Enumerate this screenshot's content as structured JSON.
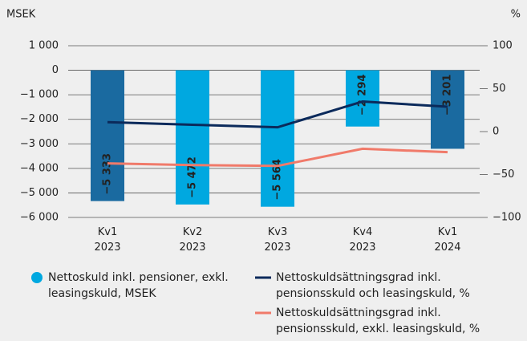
{
  "chart_data": {
    "type": "bar-line",
    "y_label": "MSEK",
    "y2_label": "%",
    "categories": [
      "Kv1 2023",
      "Kv2 2023",
      "Kv3 2023",
      "Kv4 2023",
      "Kv1 2024"
    ],
    "ylim": [
      -6000,
      1000
    ],
    "yticks": [
      {
        "value": 1000,
        "label": "1 000"
      },
      0,
      {
        "value": -1000,
        "label": "−1 000"
      },
      {
        "value": -2000,
        "label": "−2 000"
      },
      {
        "value": -3000,
        "label": "−3 000"
      },
      {
        "value": -4000,
        "label": "−4 000"
      },
      {
        "value": -5000,
        "label": "−5 000"
      },
      {
        "value": -6000,
        "label": "−6 000"
      }
    ],
    "y2lim": [
      -100,
      100
    ],
    "y2ticks": [
      100,
      50,
      0,
      {
        "value": -50,
        "label": "−50"
      },
      {
        "value": -100,
        "label": "−100"
      }
    ],
    "grid": true,
    "series": [
      {
        "name": "Nettoskuld inkl. pensioner, exkl. leasingskuld, MSEK",
        "type": "bar",
        "color": "#00a8e0",
        "colors": [
          "#1a6aa0",
          "#00a8e0",
          "#00a8e0",
          "#00a8e0",
          "#1a6aa0"
        ],
        "values": [
          -5333,
          -5472,
          -5564,
          -2294,
          -3201
        ],
        "value_labels": [
          "−5 333",
          "−5 472",
          "−5 564",
          "−2 294",
          "−3 201"
        ]
      },
      {
        "name": "Nettoskuldsättningsgrad inkl. pensionsskuld och leasingskuld, %",
        "type": "line",
        "axis": "y2",
        "color": "#0b2a5b",
        "values": [
          11,
          8,
          5,
          35,
          29
        ]
      },
      {
        "name": "Nettoskuldsättningsgrad inkl. pensionsskuld, exkl. leasingskuld, %",
        "type": "line",
        "axis": "y2",
        "color": "#f07a6a",
        "values": [
          -37,
          -39,
          -40,
          -20,
          -24
        ]
      }
    ]
  }
}
